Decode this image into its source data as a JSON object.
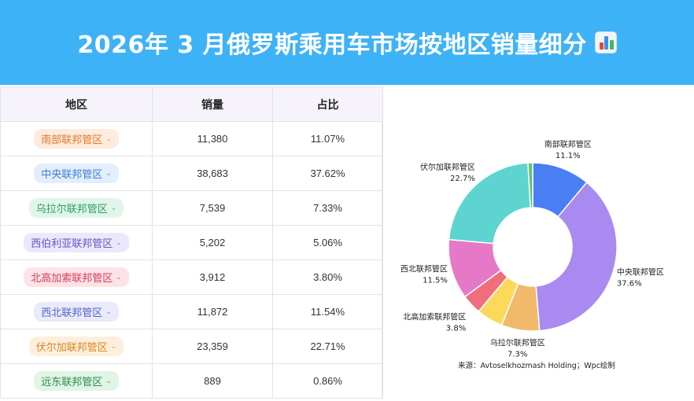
{
  "header": {
    "title": "2026年 3 月俄罗斯乘用车市场按地区销量细分",
    "icon": "bar-chart-emoji-icon"
  },
  "table": {
    "columns": [
      "地区",
      "销量",
      "占比"
    ],
    "rows": [
      {
        "region": "南部联邦管区",
        "sales": "11,380",
        "share": "11.07%",
        "tag_bg": "#fdebdd",
        "tag_fg": "#e07a2d"
      },
      {
        "region": "中央联邦管区",
        "sales": "38,683",
        "share": "37.62%",
        "tag_bg": "#e3eefc",
        "tag_fg": "#3c7fd8"
      },
      {
        "region": "乌拉尔联邦管区",
        "sales": "7,539",
        "share": "7.33%",
        "tag_bg": "#e1f6ea",
        "tag_fg": "#2f9e5e"
      },
      {
        "region": "西伯利亚联邦管区",
        "sales": "5,202",
        "share": "5.06%",
        "tag_bg": "#ece8fb",
        "tag_fg": "#6a52c9"
      },
      {
        "region": "北高加索联邦管区",
        "sales": "3,912",
        "share": "3.80%",
        "tag_bg": "#fde3e8",
        "tag_fg": "#d43d5c"
      },
      {
        "region": "西北联邦管区",
        "sales": "11,872",
        "share": "11.54%",
        "tag_bg": "#e9ebfb",
        "tag_fg": "#5563c9"
      },
      {
        "region": "伏尔加联邦管区",
        "sales": "23,359",
        "share": "22.71%",
        "tag_bg": "#fdefdd",
        "tag_fg": "#d9861d"
      },
      {
        "region": "远东联邦管区",
        "sales": "889",
        "share": "0.86%",
        "tag_bg": "#e1f4e6",
        "tag_fg": "#2b8c4b"
      }
    ]
  },
  "chart_data": {
    "type": "pie",
    "donut": true,
    "slices": [
      {
        "label": "南部联邦管区",
        "value": 11.1,
        "color": "#4a7ff3",
        "anchor": "middle"
      },
      {
        "label": "中央联邦管区",
        "value": 37.6,
        "color": "#a98af0",
        "anchor": "start"
      },
      {
        "label": "乌拉尔联邦管区",
        "value": 7.3,
        "color": "#f1b96a",
        "anchor": "middle"
      },
      {
        "label": "",
        "value": 5.1,
        "color": "#fcd95b",
        "anchor": "middle"
      },
      {
        "label": "北高加索联邦管区",
        "value": 3.8,
        "color": "#f06e7c",
        "anchor": "end"
      },
      {
        "label": "西北联邦管区",
        "value": 11.5,
        "color": "#e679c7",
        "anchor": "end"
      },
      {
        "label": "伏尔加联邦管区",
        "value": 22.7,
        "color": "#5dd4cf",
        "anchor": "end"
      },
      {
        "label": "",
        "value": 0.9,
        "color": "#5fc36f",
        "anchor": "middle"
      }
    ],
    "source": "来源：Avtoselkhozmash Holding；Wpc绘制"
  }
}
